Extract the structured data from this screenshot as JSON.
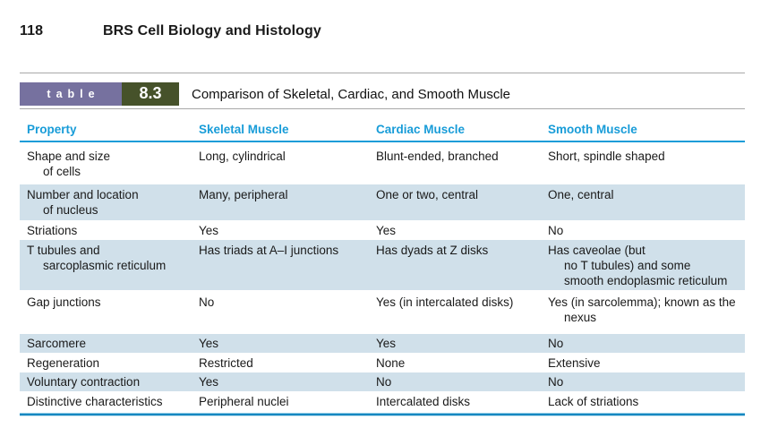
{
  "page": {
    "number": "118",
    "book_title": "BRS Cell Biology and Histology"
  },
  "table": {
    "badge_label": "table",
    "badge_number": "8.3",
    "title": "Comparison of Skeletal, Cardiac, and Smooth Muscle",
    "columns": [
      "Property",
      "Skeletal Muscle",
      "Cardiac Muscle",
      "Smooth Muscle"
    ],
    "rows": [
      {
        "property": "Shape and size\nof cells",
        "skeletal": "Long, cylindrical",
        "cardiac": "Blunt-ended, branched",
        "smooth": "Short, spindle shaped"
      },
      {
        "property": "Number and location\nof nucleus",
        "skeletal": "Many, peripheral",
        "cardiac": "One or two, central",
        "smooth": "One, central"
      },
      {
        "property": "Striations",
        "skeletal": "Yes",
        "cardiac": "Yes",
        "smooth": "No"
      },
      {
        "property": "T tubules and\nsarcoplasmic reticulum",
        "skeletal": "Has triads at A–I junctions",
        "cardiac": "Has dyads at Z disks",
        "smooth": "Has caveolae (but\nno T tubules) and some\nsmooth endoplasmic reticulum"
      },
      {
        "property": "Gap junctions",
        "skeletal": "No",
        "cardiac": "Yes (in intercalated disks)",
        "smooth": "Yes (in sarcolemma); known as the\nnexus"
      },
      {
        "property": "Sarcomere",
        "skeletal": "Yes",
        "cardiac": "Yes",
        "smooth": "No"
      },
      {
        "property": "Regeneration",
        "skeletal": "Restricted",
        "cardiac": "None",
        "smooth": "Extensive"
      },
      {
        "property": "Voluntary contraction",
        "skeletal": "Yes",
        "cardiac": "No",
        "smooth": "No"
      },
      {
        "property": "Distinctive characteristics",
        "skeletal": "Peripheral nuclei",
        "cardiac": "Intercalated disks",
        "smooth": "Lack of striations"
      }
    ]
  },
  "colors": {
    "header_blue": "#189cd8",
    "row_shade": "#d0e0ea",
    "badge_purple": "#76719f",
    "badge_green": "#46522a"
  }
}
